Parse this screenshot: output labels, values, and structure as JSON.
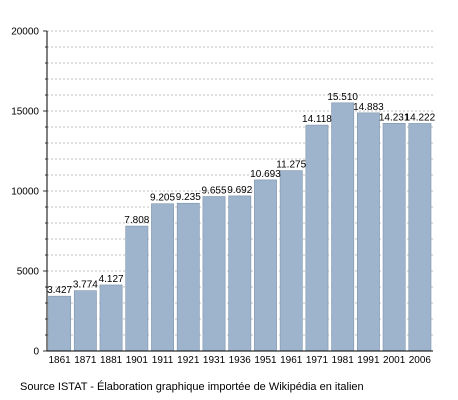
{
  "chart_data": {
    "type": "bar",
    "categories": [
      "1861",
      "1871",
      "1881",
      "1901",
      "1911",
      "1921",
      "1931",
      "1936",
      "1951",
      "1961",
      "1971",
      "1981",
      "1991",
      "2001",
      "2006"
    ],
    "values": [
      3427,
      3774,
      4127,
      7808,
      9205,
      9235,
      9655,
      9692,
      10693,
      11275,
      14118,
      15510,
      14883,
      14231,
      14222
    ],
    "value_labels": [
      "3.427",
      "3.774",
      "4.127",
      "7.808",
      "9.205",
      "9.235",
      "9.655",
      "9.692",
      "10.693",
      "11.275",
      "14.118",
      "15.510",
      "14.883",
      "14.231",
      "14.222"
    ],
    "y_ticks": [
      "0",
      "5000",
      "10000",
      "15000",
      "20000"
    ],
    "ylim": [
      0,
      20000
    ],
    "grid": true,
    "bar_color": "#9db4cc",
    "bar_edge_color": "#7d94ac"
  },
  "source_note": "Source ISTAT - Élaboration graphique importée de Wikipédia en italien"
}
